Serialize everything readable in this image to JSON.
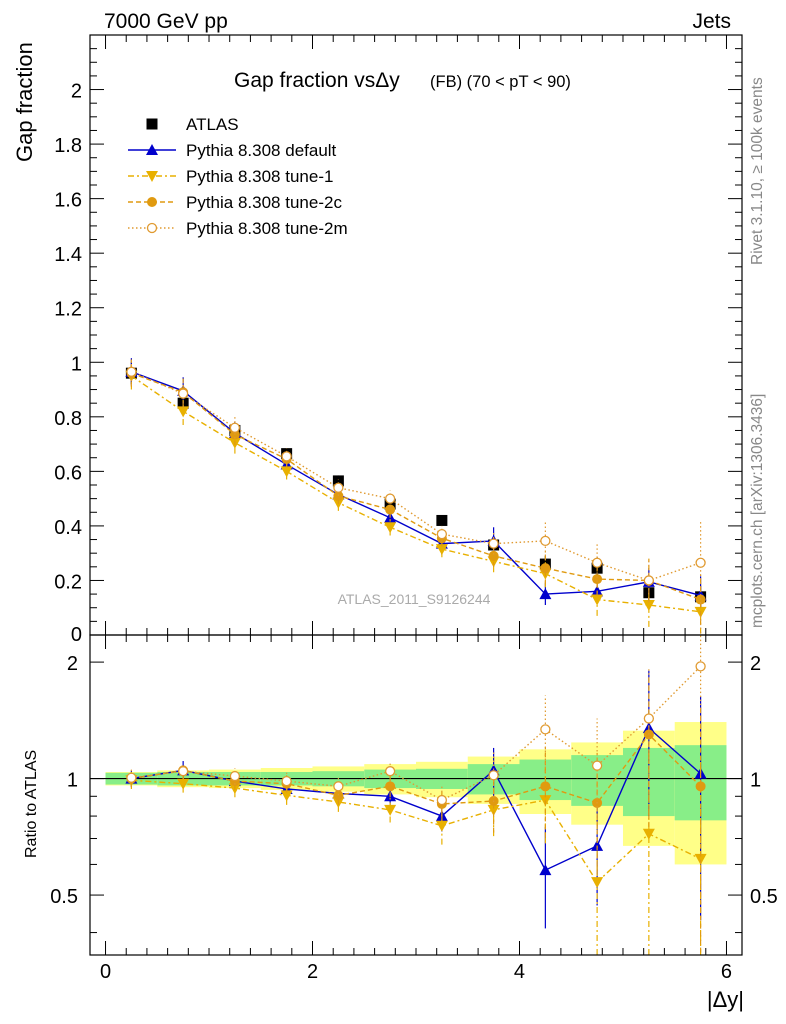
{
  "header": {
    "left": "7000 GeV pp",
    "right": "Jets"
  },
  "side_labels": {
    "rivet": "Rivet 3.1.10, ≥ 100k events",
    "mcplots": "mcplots.cern.ch [arXiv:1306.3436]"
  },
  "colors": {
    "atlas": "#000000",
    "default": "#0000cc",
    "tune1": "#e8b000",
    "tune2c": "#e09a10",
    "tune2m": "#e09a30",
    "band_yellow": "#ffff88",
    "band_green": "#88ee88"
  },
  "chart_data": [
    {
      "type": "scatter",
      "panel": "main",
      "title": "Gap fraction vsΔy",
      "title_suffix": "(FB) (70 < pT <  90)",
      "ylabel": "Gap fraction",
      "xlabel": "",
      "xlim": [
        -0.15,
        6.15
      ],
      "ylim": [
        0,
        2.2
      ],
      "yticks": [
        "0.2",
        "0.4",
        "0.6",
        "0.8",
        "1",
        "1.2",
        "1.4",
        "1.6",
        "1.8",
        "2"
      ],
      "ytick_values": [
        0.2,
        0.4,
        0.6,
        0.8,
        1.0,
        1.2,
        1.4,
        1.6,
        1.8,
        2.0
      ],
      "ytick_zero": "0",
      "watermark": "ATLAS_2011_S9126244",
      "legend_position": "top-left",
      "x": [
        0.25,
        0.75,
        1.25,
        1.75,
        2.25,
        2.75,
        3.25,
        3.75,
        4.25,
        4.75,
        5.25,
        5.75
      ],
      "series": [
        {
          "name": "ATLAS",
          "style": "data",
          "values": [
            0.96,
            0.85,
            0.75,
            0.665,
            0.565,
            0.48,
            0.42,
            0.33,
            0.26,
            0.245,
            0.155,
            0.14
          ],
          "errors": [
            0.04,
            0.03,
            0.03,
            0.02,
            0.02,
            0.02,
            0.02,
            0.03,
            0.03,
            0.04,
            0.03,
            0.04
          ]
        },
        {
          "name": "Pythia 8.308 default",
          "style": "default",
          "values": [
            0.965,
            0.895,
            0.74,
            0.625,
            0.515,
            0.43,
            0.335,
            0.345,
            0.15,
            0.16,
            0.195,
            0.145
          ],
          "errors": [
            0.05,
            0.05,
            0.04,
            0.03,
            0.03,
            0.03,
            0.04,
            0.05,
            0.04,
            0.04,
            0.05,
            0.07
          ]
        },
        {
          "name": "Pythia 8.308 tune-1",
          "style": "tune1",
          "values": [
            0.95,
            0.82,
            0.705,
            0.6,
            0.485,
            0.395,
            0.315,
            0.27,
            0.225,
            0.13,
            0.11,
            0.085
          ],
          "errors": [
            0.05,
            0.05,
            0.04,
            0.03,
            0.03,
            0.03,
            0.03,
            0.04,
            0.05,
            0.06,
            0.08,
            0.08
          ]
        },
        {
          "name": "Pythia 8.308 tune-2c",
          "style": "tune2c",
          "values": [
            0.96,
            0.89,
            0.735,
            0.645,
            0.51,
            0.46,
            0.355,
            0.29,
            0.245,
            0.205,
            0.2,
            0.13
          ],
          "errors": [
            0.05,
            0.05,
            0.04,
            0.03,
            0.03,
            0.03,
            0.03,
            0.04,
            0.06,
            0.06,
            0.08,
            0.09
          ]
        },
        {
          "name": "Pythia 8.308 tune-2m",
          "style": "tune2m",
          "values": [
            0.965,
            0.885,
            0.76,
            0.655,
            0.54,
            0.5,
            0.37,
            0.335,
            0.345,
            0.265,
            0.2,
            0.265
          ],
          "errors": [
            0.05,
            0.05,
            0.04,
            0.03,
            0.03,
            0.03,
            0.03,
            0.04,
            0.07,
            0.07,
            0.08,
            0.15
          ]
        }
      ]
    },
    {
      "type": "scatter",
      "panel": "ratio",
      "ylabel": "Ratio to ATLAS",
      "xlabel": "|Δy|",
      "xlim": [
        -0.15,
        6.15
      ],
      "ylim": [
        0.35,
        2.35
      ],
      "xticks": [
        "0",
        "2",
        "4",
        "6"
      ],
      "xtick_values": [
        0,
        2,
        4,
        6
      ],
      "yticks": [
        "0.5",
        "1",
        "2"
      ],
      "ytick_values": [
        0.5,
        1.0,
        2.0
      ],
      "x": [
        0.25,
        0.75,
        1.25,
        1.75,
        2.25,
        2.75,
        3.25,
        3.75,
        4.25,
        4.75,
        5.25,
        5.75
      ],
      "band_green": [
        0.035,
        0.04,
        0.04,
        0.04,
        0.045,
        0.055,
        0.06,
        0.09,
        0.12,
        0.15,
        0.2,
        0.22
      ],
      "band_yellow": [
        0.04,
        0.05,
        0.055,
        0.065,
        0.075,
        0.09,
        0.105,
        0.14,
        0.19,
        0.24,
        0.33,
        0.4
      ],
      "series": [
        {
          "name": "Pythia 8.308 default",
          "style": "default",
          "values": [
            1.0,
            1.05,
            0.985,
            0.94,
            0.915,
            0.9,
            0.8,
            1.05,
            0.58,
            0.67,
            1.35,
            1.03
          ],
          "errors": [
            0.05,
            0.06,
            0.05,
            0.05,
            0.05,
            0.06,
            0.07,
            0.15,
            0.17,
            0.2,
            0.55,
            0.6
          ]
        },
        {
          "name": "Pythia 8.308 tune-1",
          "style": "tune1",
          "values": [
            0.99,
            0.97,
            0.945,
            0.905,
            0.87,
            0.83,
            0.755,
            0.83,
            0.88,
            0.54,
            0.72,
            0.62
          ],
          "errors": [
            0.05,
            0.05,
            0.05,
            0.05,
            0.05,
            0.06,
            0.08,
            0.12,
            0.2,
            0.25,
            0.45,
            0.5
          ]
        },
        {
          "name": "Pythia 8.308 tune-2c",
          "style": "tune2c",
          "values": [
            1.0,
            1.05,
            0.985,
            0.97,
            0.905,
            0.955,
            0.86,
            0.875,
            0.955,
            0.865,
            1.3,
            0.955
          ],
          "errors": [
            0.05,
            0.05,
            0.05,
            0.05,
            0.05,
            0.06,
            0.08,
            0.15,
            0.25,
            0.3,
            0.55,
            0.6
          ]
        },
        {
          "name": "Pythia 8.308 tune-2m",
          "style": "tune2m",
          "values": [
            1.005,
            1.045,
            1.015,
            0.985,
            0.955,
            1.045,
            0.88,
            1.02,
            1.34,
            1.08,
            1.43,
            1.95
          ],
          "errors": [
            0.05,
            0.05,
            0.05,
            0.05,
            0.05,
            0.06,
            0.08,
            0.15,
            0.3,
            0.35,
            0.5,
            0.7
          ]
        }
      ]
    }
  ]
}
